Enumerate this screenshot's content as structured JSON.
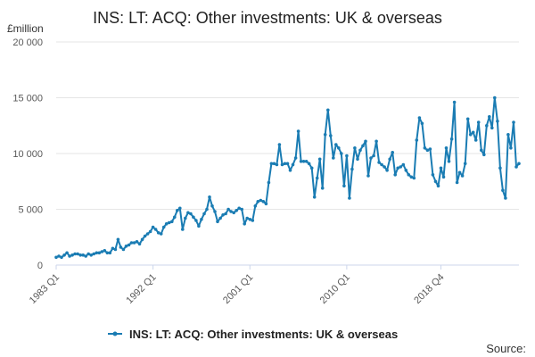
{
  "title": "INS: LT: ACQ: Other investments: UK & overseas",
  "unit_label": "£million",
  "source_label": "Source:",
  "colors": {
    "series": "#1a7cb3",
    "grid": "#e6e6e6",
    "text": "#595959"
  },
  "chart_data": {
    "type": "line",
    "title": "INS: LT: ACQ: Other investments: UK & overseas",
    "xlabel": "",
    "ylabel": "£million",
    "ylim": [
      0,
      20000
    ],
    "y_ticks": [
      0,
      5000,
      10000,
      15000,
      20000
    ],
    "y_tick_labels": [
      "0",
      "5 000",
      "10 000",
      "15 000",
      "20 000"
    ],
    "x_start": "1983 Q1",
    "x_end": "2018 Q4",
    "x_ticks": [
      "1983 Q1",
      "1992 Q1",
      "2001 Q1",
      "2010 Q1",
      "2018 Q4"
    ],
    "grid": true,
    "legend_position": "bottom",
    "series": [
      {
        "name": "INS: LT: ACQ: Other investments: UK & overseas",
        "values": [
          700,
          800,
          700,
          900,
          1100,
          800,
          900,
          1000,
          1000,
          900,
          900,
          800,
          1000,
          900,
          1000,
          1100,
          1100,
          1200,
          1300,
          1100,
          1100,
          1500,
          1400,
          2300,
          1600,
          1400,
          1700,
          1800,
          2000,
          2000,
          2100,
          1900,
          2300,
          2600,
          2800,
          3000,
          3400,
          3200,
          2900,
          2800,
          3400,
          3700,
          3800,
          3900,
          4300,
          4900,
          5100,
          3200,
          4200,
          4700,
          4600,
          4300,
          4000,
          3500,
          4100,
          4600,
          5000,
          6100,
          5300,
          4800,
          3900,
          4200,
          4500,
          4600,
          5000,
          4800,
          4700,
          4900,
          5100,
          5000,
          3700,
          4200,
          4100,
          4000,
          5300,
          5700,
          5800,
          5700,
          5500,
          7400,
          9100,
          9100,
          9000,
          10800,
          9000,
          9100,
          9100,
          8500,
          9000,
          9600,
          12000,
          9300,
          9300,
          9300,
          9100,
          8700,
          6100,
          7800,
          9500,
          6900,
          11700,
          13900,
          11600,
          9600,
          10800,
          10500,
          10000,
          7100,
          9800,
          6000,
          8600,
          10500,
          9500,
          10300,
          10700,
          11100,
          8000,
          9600,
          9800,
          11100,
          9200,
          9000,
          8800,
          8500,
          9500,
          10100,
          8100,
          8700,
          8800,
          9000,
          8500,
          8100,
          7900,
          7800,
          11200,
          13200,
          12700,
          10500,
          10300,
          10400,
          8100,
          7500,
          7100,
          8700,
          7900,
          10500,
          9300,
          11300,
          14600,
          7400,
          8300,
          8000,
          9100,
          13100,
          11700,
          11900,
          11200,
          12800,
          10300,
          9900,
          12500,
          13300,
          12300,
          15000,
          12900,
          8700,
          6700,
          6000,
          11700,
          10500,
          12800,
          8800,
          9100
        ]
      }
    ]
  }
}
